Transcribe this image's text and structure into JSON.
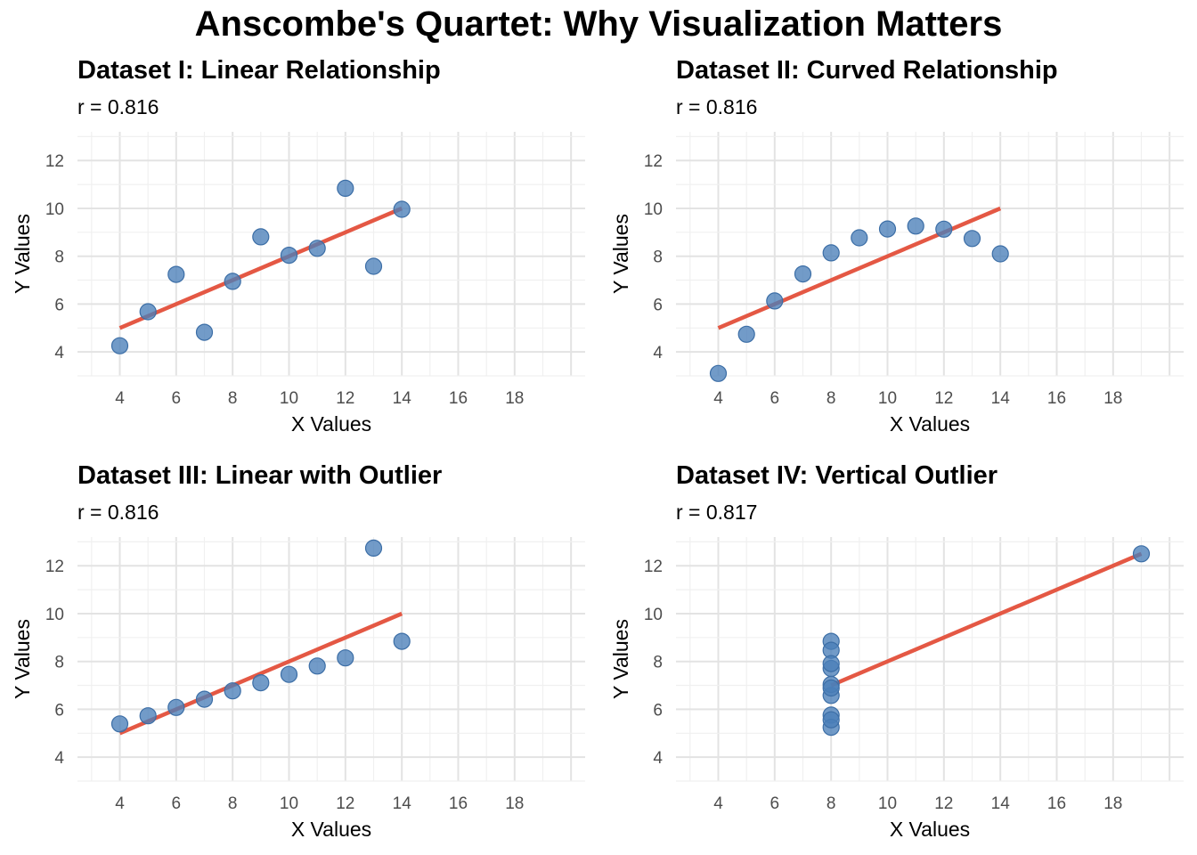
{
  "title": "Anscombe's Quartet: Why Visualization Matters",
  "colors": {
    "point": "#4a7fb8",
    "fit_line": "#e45844",
    "grid": "#e3e3e3",
    "background": "#ffffff"
  },
  "chart_data": [
    {
      "type": "scatter",
      "title": "Dataset I: Linear Relationship",
      "subtitle": "r = 0.816",
      "xlabel": "X Values",
      "ylabel": "Y Values",
      "xlim": [
        2.5,
        20.5
      ],
      "ylim": [
        3.0,
        13.2
      ],
      "xticks": [
        4,
        6,
        8,
        10,
        12,
        14,
        16,
        18
      ],
      "yticks": [
        4,
        6,
        8,
        10,
        12
      ],
      "x": [
        10,
        8,
        13,
        9,
        11,
        14,
        6,
        4,
        12,
        7,
        5
      ],
      "y": [
        8.04,
        6.95,
        7.58,
        8.81,
        8.33,
        9.96,
        7.24,
        4.26,
        10.84,
        4.82,
        5.68
      ],
      "fit_line": {
        "x": [
          4,
          14
        ],
        "y": [
          5.0,
          10.0
        ]
      }
    },
    {
      "type": "scatter",
      "title": "Dataset II: Curved Relationship",
      "subtitle": "r = 0.816",
      "xlabel": "X Values",
      "ylabel": "Y Values",
      "xlim": [
        2.5,
        20.5
      ],
      "ylim": [
        3.0,
        13.2
      ],
      "xticks": [
        4,
        6,
        8,
        10,
        12,
        14,
        16,
        18
      ],
      "yticks": [
        4,
        6,
        8,
        10,
        12
      ],
      "x": [
        10,
        8,
        13,
        9,
        11,
        14,
        6,
        4,
        12,
        7,
        5
      ],
      "y": [
        9.14,
        8.14,
        8.74,
        8.77,
        9.26,
        8.1,
        6.13,
        3.1,
        9.13,
        7.26,
        4.74
      ],
      "fit_line": {
        "x": [
          4,
          14
        ],
        "y": [
          5.0,
          10.0
        ]
      }
    },
    {
      "type": "scatter",
      "title": "Dataset III: Linear with Outlier",
      "subtitle": "r = 0.816",
      "xlabel": "X Values",
      "ylabel": "Y Values",
      "xlim": [
        2.5,
        20.5
      ],
      "ylim": [
        3.0,
        13.2
      ],
      "xticks": [
        4,
        6,
        8,
        10,
        12,
        14,
        16,
        18
      ],
      "yticks": [
        4,
        6,
        8,
        10,
        12
      ],
      "x": [
        10,
        8,
        13,
        9,
        11,
        14,
        6,
        4,
        12,
        7,
        5
      ],
      "y": [
        7.46,
        6.77,
        12.74,
        7.11,
        7.81,
        8.84,
        6.08,
        5.39,
        8.15,
        6.42,
        5.73
      ],
      "fit_line": {
        "x": [
          4,
          14
        ],
        "y": [
          5.0,
          10.0
        ]
      }
    },
    {
      "type": "scatter",
      "title": "Dataset IV: Vertical Outlier",
      "subtitle": "r = 0.817",
      "xlabel": "X Values",
      "ylabel": "Y Values",
      "xlim": [
        2.5,
        20.5
      ],
      "ylim": [
        3.0,
        13.2
      ],
      "xticks": [
        4,
        6,
        8,
        10,
        12,
        14,
        16,
        18
      ],
      "yticks": [
        4,
        6,
        8,
        10,
        12
      ],
      "x": [
        8,
        8,
        8,
        8,
        8,
        8,
        8,
        19,
        8,
        8,
        8
      ],
      "y": [
        6.58,
        5.76,
        7.71,
        8.84,
        8.47,
        7.04,
        5.25,
        12.5,
        5.56,
        7.91,
        6.89
      ],
      "fit_line": {
        "x": [
          8,
          19
        ],
        "y": [
          7.0,
          12.5
        ]
      }
    }
  ]
}
